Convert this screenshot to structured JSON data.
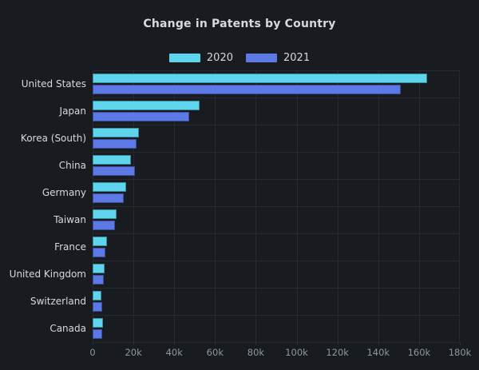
{
  "title": "Change in Patents by Country",
  "colors": {
    "background": "#181c20",
    "grid": "#262a2f",
    "axis": "#2c3137",
    "title_text": "#d8d9da",
    "category_text": "#d8d9da",
    "tick_text": "#8f969e",
    "series_2020": "#5ed5ec",
    "series_2021": "#5d79e5"
  },
  "legend": {
    "position": "top-center",
    "items": [
      {
        "label": "2020",
        "color": "#5ed5ec"
      },
      {
        "label": "2021",
        "color": "#5d79e5"
      }
    ]
  },
  "chart_data": {
    "type": "bar",
    "orientation": "horizontal",
    "title": "Change in Patents by Country",
    "categories": [
      "United States",
      "Japan",
      "Korea (South)",
      "China",
      "Germany",
      "Taiwan",
      "France",
      "United Kingdom",
      "Switzerland",
      "Canada"
    ],
    "series": [
      {
        "name": "2020",
        "color": "#5ed5ec",
        "values": [
          164000,
          52400,
          22600,
          18700,
          16400,
          11700,
          7000,
          5900,
          4400,
          5100
        ]
      },
      {
        "name": "2021",
        "color": "#5d79e5",
        "values": [
          151000,
          47200,
          21500,
          20700,
          15200,
          10900,
          6300,
          5400,
          4800,
          4600
        ]
      }
    ],
    "xlabel": "",
    "ylabel": "",
    "xlim": [
      0,
      180000
    ],
    "x_ticks_values": [
      0,
      20000,
      40000,
      60000,
      80000,
      100000,
      120000,
      140000,
      160000,
      180000
    ],
    "x_ticks_labels": [
      "0",
      "20k",
      "40k",
      "60k",
      "80k",
      "100k",
      "120k",
      "140k",
      "160k",
      "180k"
    ],
    "grid": true,
    "legend_position": "top"
  }
}
